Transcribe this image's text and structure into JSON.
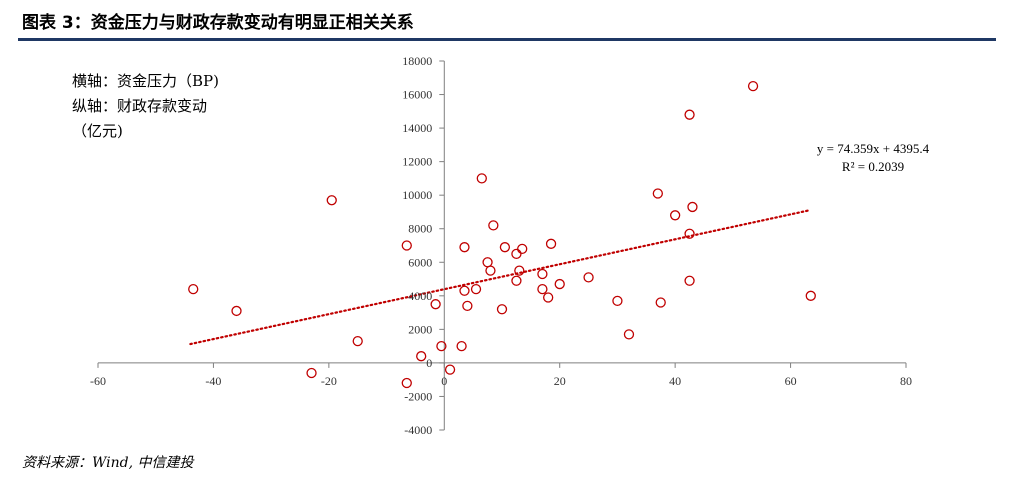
{
  "header": {
    "figure_title": "图表 3：资金压力与财政存款变动有明显正相关关系"
  },
  "axis_notes": {
    "x_note": "横轴：资金压力（BP)",
    "y_note_line1": "纵轴：财政存款变动",
    "y_note_line2": "（亿元)"
  },
  "footer": {
    "source": "资料来源：Wind, 中信建投"
  },
  "chart_data": {
    "type": "scatter",
    "xlim": [
      -60,
      80
    ],
    "ylim": [
      -4000,
      18000
    ],
    "x_ticks": [
      -60,
      -40,
      -20,
      0,
      20,
      40,
      60,
      80
    ],
    "y_ticks": [
      -4000,
      -2000,
      0,
      2000,
      4000,
      6000,
      8000,
      10000,
      12000,
      14000,
      16000,
      18000
    ],
    "marker_color": "#c00000",
    "trend_color": "#c00000",
    "points": [
      {
        "x": -43.5,
        "y": 4400
      },
      {
        "x": -36,
        "y": 3100
      },
      {
        "x": -23,
        "y": -600
      },
      {
        "x": -19.5,
        "y": 9700
      },
      {
        "x": -15,
        "y": 1300
      },
      {
        "x": -6.5,
        "y": 7000
      },
      {
        "x": -6.5,
        "y": -1200
      },
      {
        "x": -4,
        "y": 400
      },
      {
        "x": -1.5,
        "y": 3500
      },
      {
        "x": -0.5,
        "y": 1000
      },
      {
        "x": 1,
        "y": -400
      },
      {
        "x": 3,
        "y": 1000
      },
      {
        "x": 3.5,
        "y": 4300
      },
      {
        "x": 3.5,
        "y": 6900
      },
      {
        "x": 4,
        "y": 3400
      },
      {
        "x": 5.5,
        "y": 4400
      },
      {
        "x": 6.5,
        "y": 11000
      },
      {
        "x": 7.5,
        "y": 6000
      },
      {
        "x": 8,
        "y": 5500
      },
      {
        "x": 8.5,
        "y": 8200
      },
      {
        "x": 10,
        "y": 3200
      },
      {
        "x": 10.5,
        "y": 6900
      },
      {
        "x": 12.5,
        "y": 4900
      },
      {
        "x": 12.5,
        "y": 6500
      },
      {
        "x": 13,
        "y": 5500
      },
      {
        "x": 13.5,
        "y": 6800
      },
      {
        "x": 17,
        "y": 4400
      },
      {
        "x": 17,
        "y": 5300
      },
      {
        "x": 18,
        "y": 3900
      },
      {
        "x": 18.5,
        "y": 7100
      },
      {
        "x": 20,
        "y": 4700
      },
      {
        "x": 25,
        "y": 5100
      },
      {
        "x": 30,
        "y": 3700
      },
      {
        "x": 32,
        "y": 1700
      },
      {
        "x": 37,
        "y": 10100
      },
      {
        "x": 37.5,
        "y": 3600
      },
      {
        "x": 40,
        "y": 8800
      },
      {
        "x": 42.5,
        "y": 14800
      },
      {
        "x": 42.5,
        "y": 7700
      },
      {
        "x": 42.5,
        "y": 4900
      },
      {
        "x": 43,
        "y": 9300
      },
      {
        "x": 53.5,
        "y": 16500
      },
      {
        "x": 63.5,
        "y": 4000
      }
    ],
    "trendline": {
      "slope": 74.359,
      "intercept": 4395.4,
      "x_range": [
        -44,
        63
      ],
      "equation": "y = 74.359x + 4395.4",
      "r2": "R² = 0.2039"
    }
  }
}
